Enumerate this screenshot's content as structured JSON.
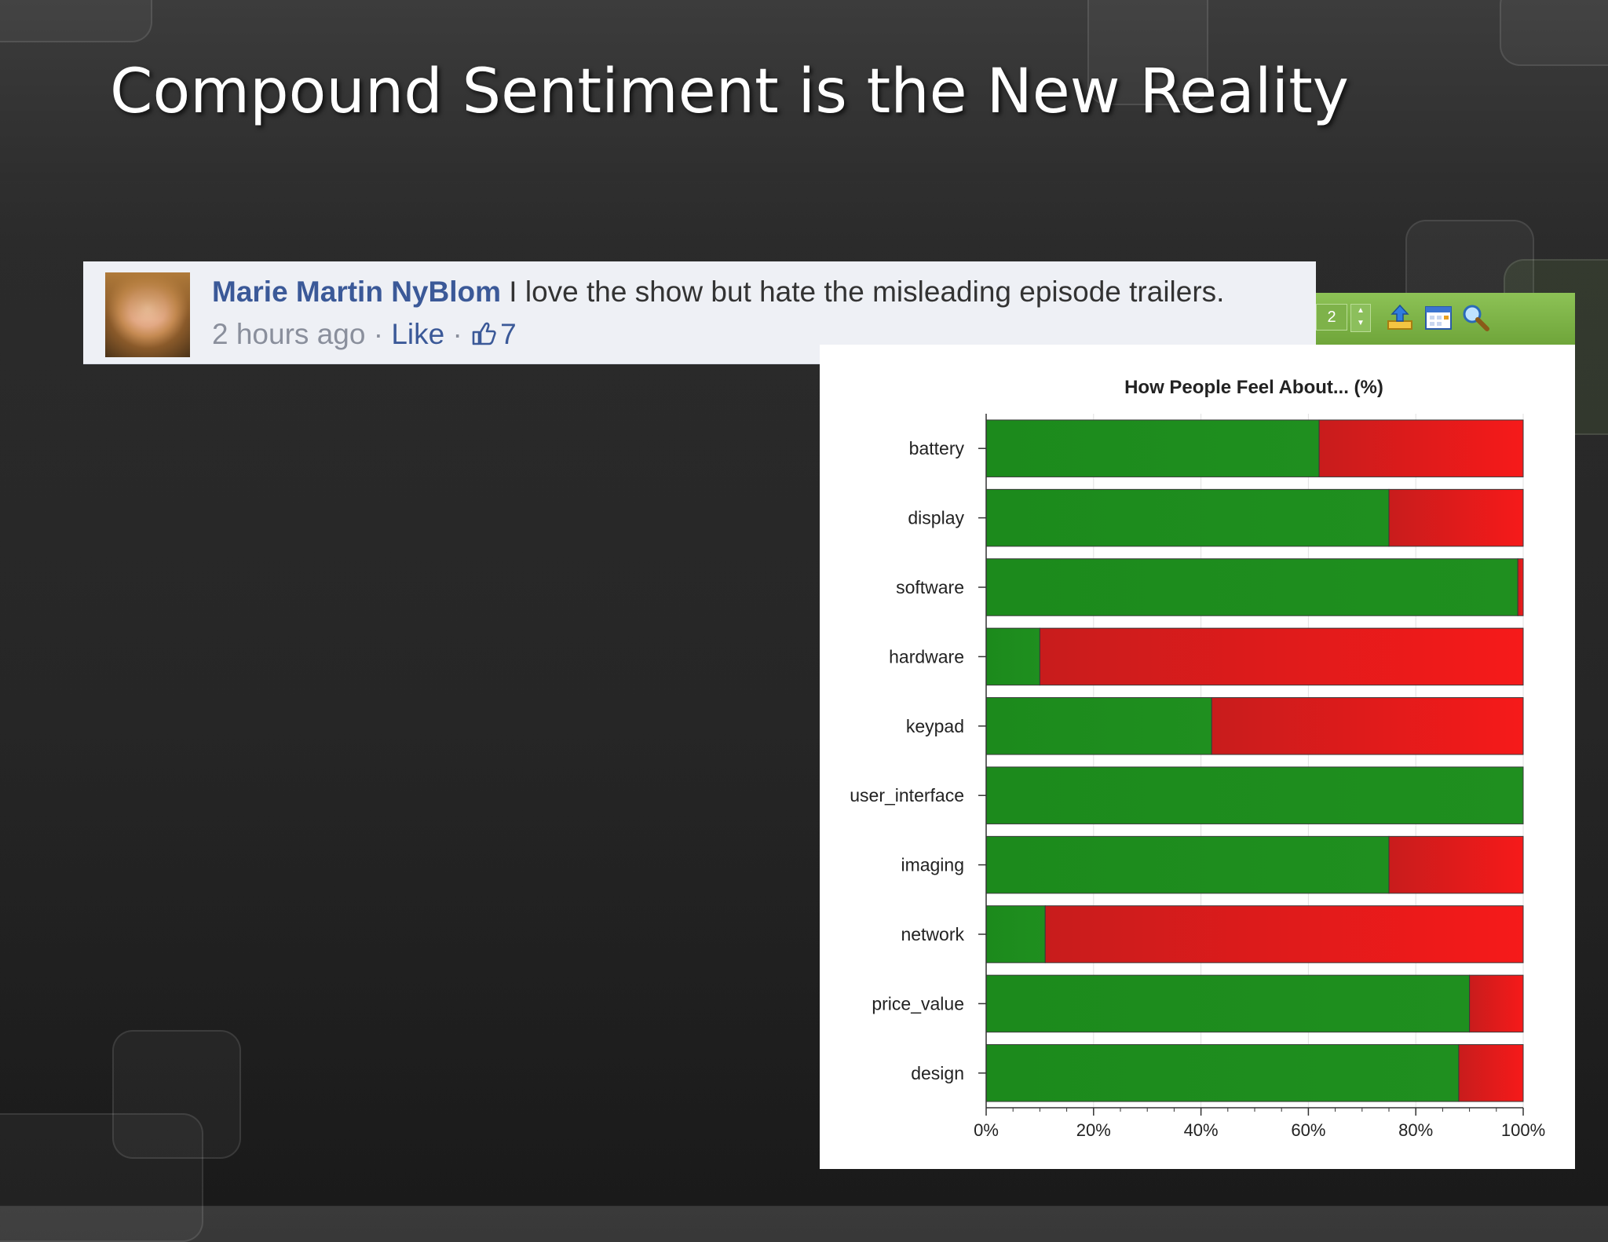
{
  "slide": {
    "title": "Compound Sentiment is the New Reality"
  },
  "comment": {
    "author": "Marie Martin NyBlom",
    "text": "I love the show but hate the misleading episode trailers.",
    "time": "2 hours ago",
    "sep": "·",
    "like_label": "Like",
    "like_count": "7"
  },
  "toolbar": {
    "page_value": "2",
    "icons": [
      "export-icon",
      "calendar-icon",
      "zoom-icon"
    ]
  },
  "chart_data": {
    "type": "bar",
    "orientation": "horizontal",
    "stacked": true,
    "title": "How People Feel About... (%)",
    "categories": [
      "battery",
      "display",
      "software",
      "hardware",
      "keypad",
      "user_interface",
      "imaging",
      "network",
      "price_value",
      "design"
    ],
    "series": [
      {
        "color": "#1e8a1e",
        "values": [
          62,
          75,
          99,
          10,
          42,
          100,
          75,
          11,
          90,
          88
        ]
      },
      {
        "color": "#e01818",
        "values": [
          38,
          25,
          1,
          90,
          58,
          0,
          25,
          89,
          10,
          12
        ]
      }
    ],
    "xlim": [
      0,
      100
    ],
    "xticks": [
      "0%",
      "20%",
      "40%",
      "60%",
      "80%",
      "100%"
    ],
    "grid": true
  }
}
